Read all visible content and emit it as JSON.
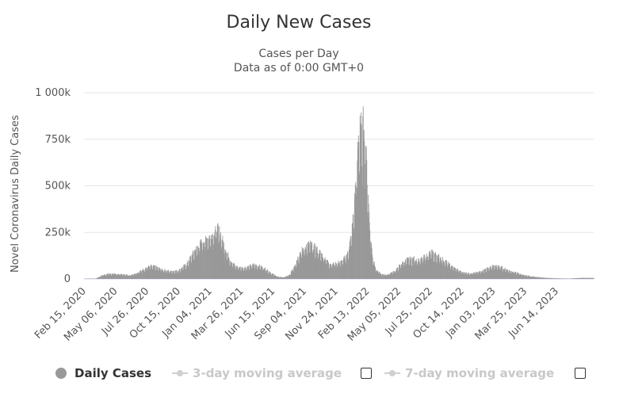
{
  "chart_data": {
    "type": "bar",
    "title": "Daily New Cases",
    "subtitle_lines": [
      "Cases per Day",
      "Data as of 0:00 GMT+0"
    ],
    "ylabel": "Novel Coronavirus Daily Cases",
    "xlabel": "",
    "ylim": [
      0,
      1000000
    ],
    "y_ticks": [
      0,
      250000,
      500000,
      750000,
      1000000
    ],
    "y_tick_labels": [
      "0",
      "250k",
      "500k",
      "750k",
      "1 000k"
    ],
    "x_range": [
      "2020-02-15",
      "2023-09-01"
    ],
    "x_tick_labels": [
      "Feb 15, 2020",
      "May 06, 2020",
      "Jul 26, 2020",
      "Oct 15, 2020",
      "Jan 04, 2021",
      "Mar 26, 2021",
      "Jun 15, 2021",
      "Sep 04, 2021",
      "Nov 24, 2021",
      "Feb 13, 2022",
      "May 05, 2022",
      "Jul 25, 2022",
      "Oct 14, 2022",
      "Jan 03, 2023",
      "Mar 25, 2023",
      "Jun 14, 2023"
    ],
    "grid": true,
    "series": [
      {
        "name": "Daily Cases",
        "color": "#999999",
        "points": [
          [
            "2020-02-15",
            1000
          ],
          [
            "2020-03-15",
            2000
          ],
          [
            "2020-04-01",
            20000
          ],
          [
            "2020-04-15",
            28000
          ],
          [
            "2020-05-01",
            27000
          ],
          [
            "2020-05-20",
            25000
          ],
          [
            "2020-06-10",
            20000
          ],
          [
            "2020-07-01",
            35000
          ],
          [
            "2020-07-20",
            60000
          ],
          [
            "2020-08-01",
            70000
          ],
          [
            "2020-08-15",
            65000
          ],
          [
            "2020-09-01",
            50000
          ],
          [
            "2020-09-20",
            42000
          ],
          [
            "2020-10-10",
            45000
          ],
          [
            "2020-11-01",
            80000
          ],
          [
            "2020-11-20",
            150000
          ],
          [
            "2020-12-05",
            190000
          ],
          [
            "2020-12-25",
            225000
          ],
          [
            "2021-01-05",
            240000
          ],
          [
            "2021-01-15",
            280000
          ],
          [
            "2021-01-25",
            250000
          ],
          [
            "2021-02-05",
            175000
          ],
          [
            "2021-02-20",
            100000
          ],
          [
            "2021-03-05",
            70000
          ],
          [
            "2021-03-20",
            60000
          ],
          [
            "2021-04-05",
            65000
          ],
          [
            "2021-04-20",
            78000
          ],
          [
            "2021-05-05",
            70000
          ],
          [
            "2021-05-20",
            55000
          ],
          [
            "2021-06-05",
            30000
          ],
          [
            "2021-06-20",
            12000
          ],
          [
            "2021-07-05",
            9000
          ],
          [
            "2021-07-20",
            20000
          ],
          [
            "2021-08-01",
            70000
          ],
          [
            "2021-08-15",
            140000
          ],
          [
            "2021-09-01",
            180000
          ],
          [
            "2021-09-10",
            190000
          ],
          [
            "2021-09-25",
            165000
          ],
          [
            "2021-10-15",
            120000
          ],
          [
            "2021-11-01",
            80000
          ],
          [
            "2021-11-15",
            85000
          ],
          [
            "2021-12-01",
            95000
          ],
          [
            "2021-12-15",
            140000
          ],
          [
            "2021-12-25",
            250000
          ],
          [
            "2022-01-02",
            450000
          ],
          [
            "2022-01-08",
            650000
          ],
          [
            "2022-01-15",
            880000
          ],
          [
            "2022-01-20",
            760000
          ],
          [
            "2022-01-25",
            880000
          ],
          [
            "2022-02-01",
            600000
          ],
          [
            "2022-02-08",
            320000
          ],
          [
            "2022-02-15",
            130000
          ],
          [
            "2022-02-25",
            50000
          ],
          [
            "2022-03-10",
            25000
          ],
          [
            "2022-03-25",
            22000
          ],
          [
            "2022-04-15",
            45000
          ],
          [
            "2022-05-01",
            85000
          ],
          [
            "2022-05-15",
            105000
          ],
          [
            "2022-06-01",
            110000
          ],
          [
            "2022-06-15",
            100000
          ],
          [
            "2022-07-01",
            125000
          ],
          [
            "2022-07-15",
            145000
          ],
          [
            "2022-08-01",
            125000
          ],
          [
            "2022-08-20",
            95000
          ],
          [
            "2022-09-10",
            60000
          ],
          [
            "2022-10-01",
            38000
          ],
          [
            "2022-10-20",
            30000
          ],
          [
            "2022-11-10",
            35000
          ],
          [
            "2022-12-01",
            55000
          ],
          [
            "2022-12-20",
            70000
          ],
          [
            "2023-01-10",
            65000
          ],
          [
            "2023-01-25",
            45000
          ],
          [
            "2023-02-15",
            35000
          ],
          [
            "2023-03-10",
            20000
          ],
          [
            "2023-04-01",
            12000
          ],
          [
            "2023-05-01",
            6000
          ],
          [
            "2023-06-01",
            3000
          ],
          [
            "2023-07-01",
            2000
          ],
          [
            "2023-08-01",
            6000
          ],
          [
            "2023-09-01",
            5000
          ]
        ]
      }
    ]
  },
  "legend": {
    "daily_cases": "Daily Cases",
    "avg3": "3-day moving average",
    "avg7": "7-day moving average"
  }
}
